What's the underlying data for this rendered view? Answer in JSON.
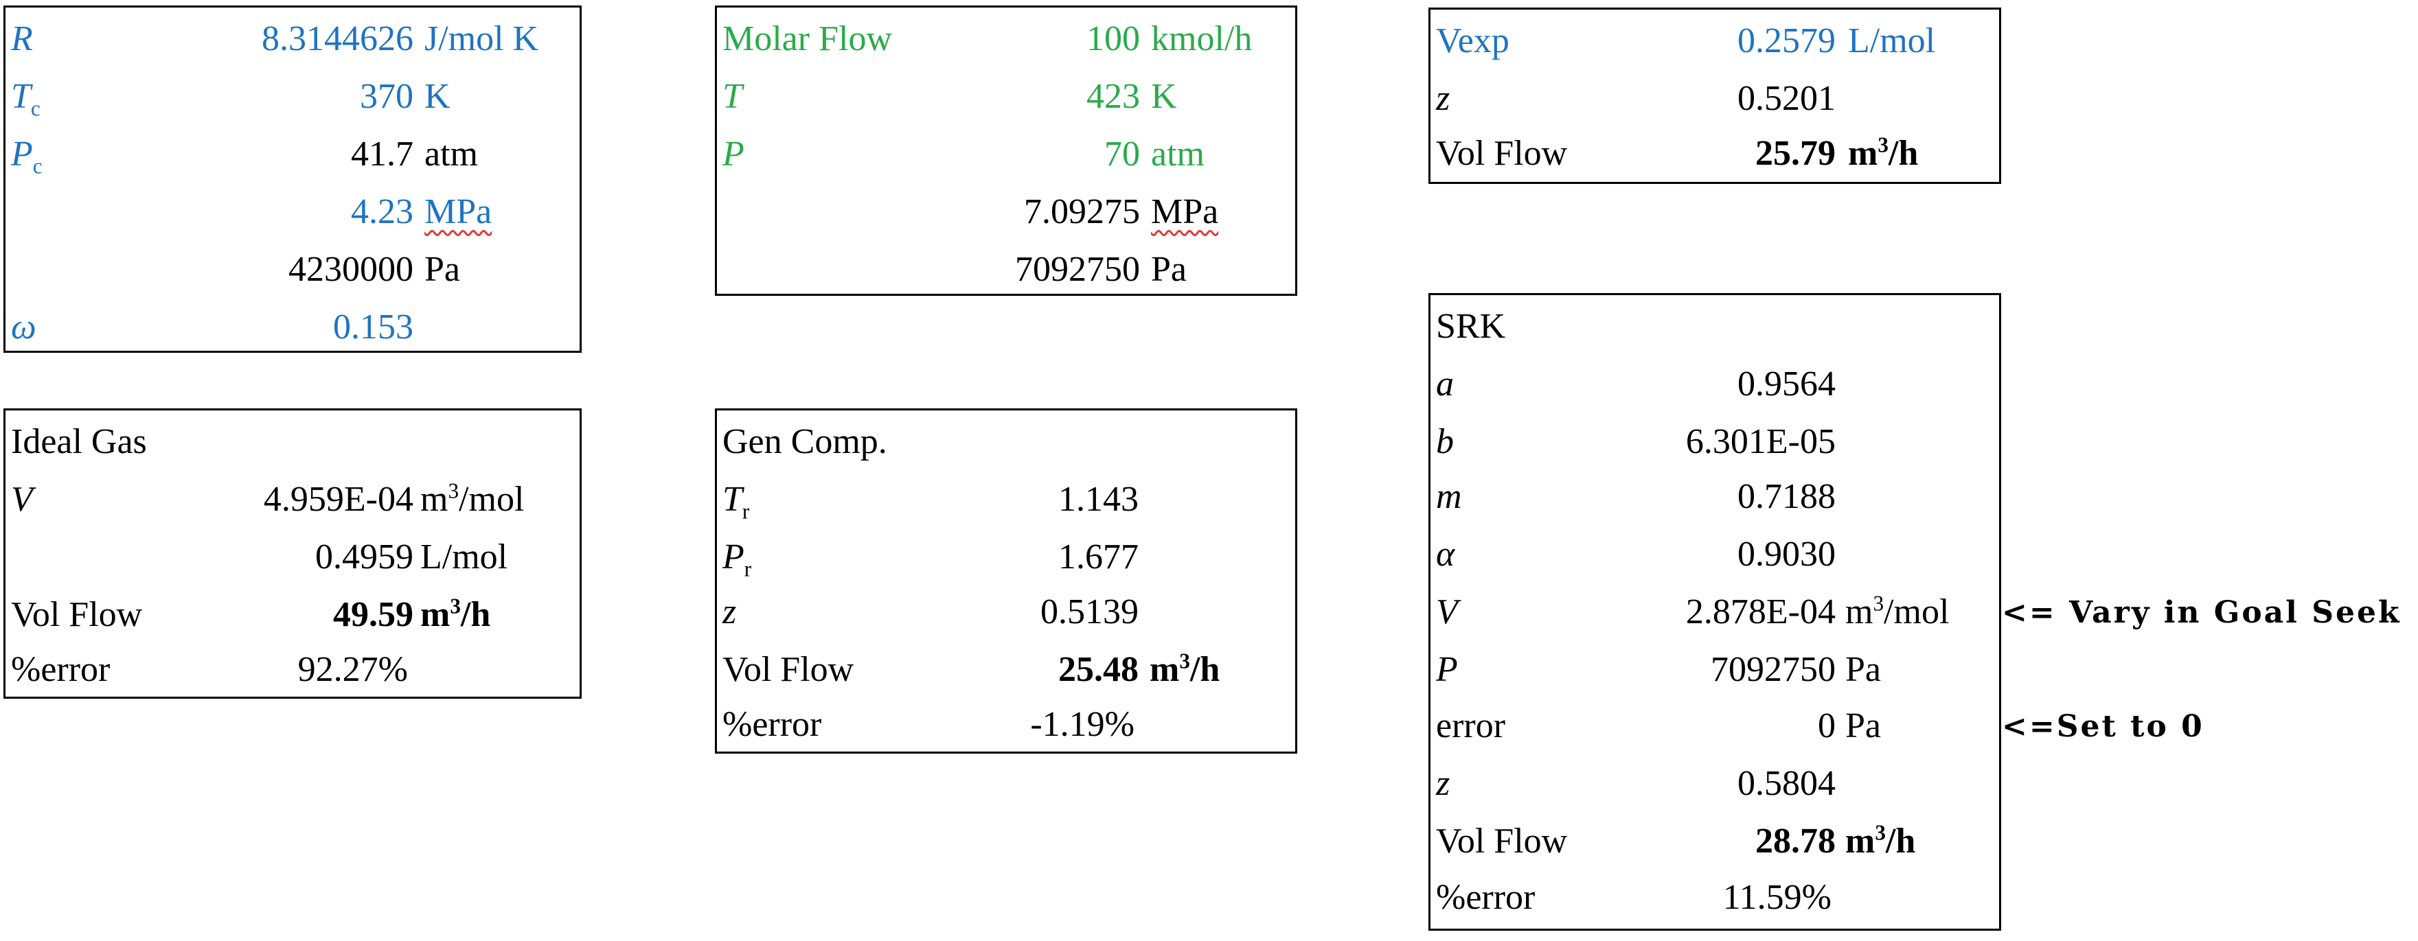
{
  "colors": {
    "blue": "#1e74c1",
    "green": "#2aaa4a",
    "black": "#000000",
    "spellcheck": "#e53935"
  },
  "constants": {
    "R": {
      "label": "R",
      "value": "8.3144626",
      "unit": "J/mol K"
    },
    "Tc": {
      "label": "T",
      "sub": "c",
      "value": "370",
      "unit": "K"
    },
    "Pc": {
      "label": "P",
      "sub": "c",
      "value": "41.7",
      "unit": "atm"
    },
    "Pc_mpa": {
      "value": "4.23",
      "unit": "MPa"
    },
    "Pc_pa": {
      "value": "4230000",
      "unit": "Pa"
    },
    "omega": {
      "label": "ω",
      "value": "0.153"
    }
  },
  "conditions": {
    "molar_flow": {
      "label": "Molar Flow",
      "value": "100",
      "unit": "kmol/h"
    },
    "T": {
      "label": "T",
      "value": "423",
      "unit": "K"
    },
    "P": {
      "label": "P",
      "value": "70",
      "unit": "atm"
    },
    "P_mpa": {
      "value": "7.09275",
      "unit": "MPa"
    },
    "P_pa": {
      "value": "7092750",
      "unit": "Pa"
    }
  },
  "experimental": {
    "vexp": {
      "label": "Vexp",
      "value": "0.2579",
      "unit": "L/mol"
    },
    "z": {
      "label": "z",
      "value": "0.5201"
    },
    "vol_flow": {
      "label": "Vol Flow",
      "value": "25.79",
      "unit_base": "m",
      "unit_sup": "3",
      "unit_tail": "/h"
    }
  },
  "ideal_gas": {
    "title": "Ideal Gas",
    "V": {
      "label": "V",
      "value": "4.959E-04",
      "unit_base": "m",
      "unit_sup": "3",
      "unit_tail": "/mol"
    },
    "V_l": {
      "value": "0.4959",
      "unit": "L/mol"
    },
    "vol_flow": {
      "label": "Vol Flow",
      "value": "49.59",
      "unit_base": "m",
      "unit_sup": "3",
      "unit_tail": "/h"
    },
    "error": {
      "label": "%error",
      "value": "92.27%"
    }
  },
  "gen_comp": {
    "title": "Gen Comp.",
    "Tr": {
      "label": "T",
      "sub": "r",
      "value": "1.143"
    },
    "Pr": {
      "label": "P",
      "sub": "r",
      "value": "1.677"
    },
    "z": {
      "label": "z",
      "value": "0.5139"
    },
    "vol_flow": {
      "label": "Vol Flow",
      "value": "25.48",
      "unit_base": "m",
      "unit_sup": "3",
      "unit_tail": "/h"
    },
    "error": {
      "label": "%error",
      "value": "-1.19%"
    }
  },
  "srk": {
    "title": "SRK",
    "a": {
      "label": "a",
      "value": "0.9564"
    },
    "b": {
      "label": "b",
      "value": "6.301E-05"
    },
    "m": {
      "label": "m",
      "value": "0.7188"
    },
    "alpha": {
      "label": "α",
      "value": "0.9030"
    },
    "V": {
      "label": "V",
      "value": "2.878E-04",
      "unit_base": "m",
      "unit_sup": "3",
      "unit_tail": "/mol"
    },
    "P": {
      "label": "P",
      "value": "7092750",
      "unit": "Pa"
    },
    "error_pa": {
      "label": "error",
      "value": "0",
      "unit": "Pa"
    },
    "z": {
      "label": "z",
      "value": "0.5804"
    },
    "vol_flow": {
      "label": "Vol Flow",
      "value": "28.78",
      "unit_base": "m",
      "unit_sup": "3",
      "unit_tail": "/h"
    },
    "error": {
      "label": "%error",
      "value": "11.59%"
    }
  },
  "notes": {
    "vary": "<= Vary in Goal Seek",
    "set": "<=Set to 0"
  }
}
